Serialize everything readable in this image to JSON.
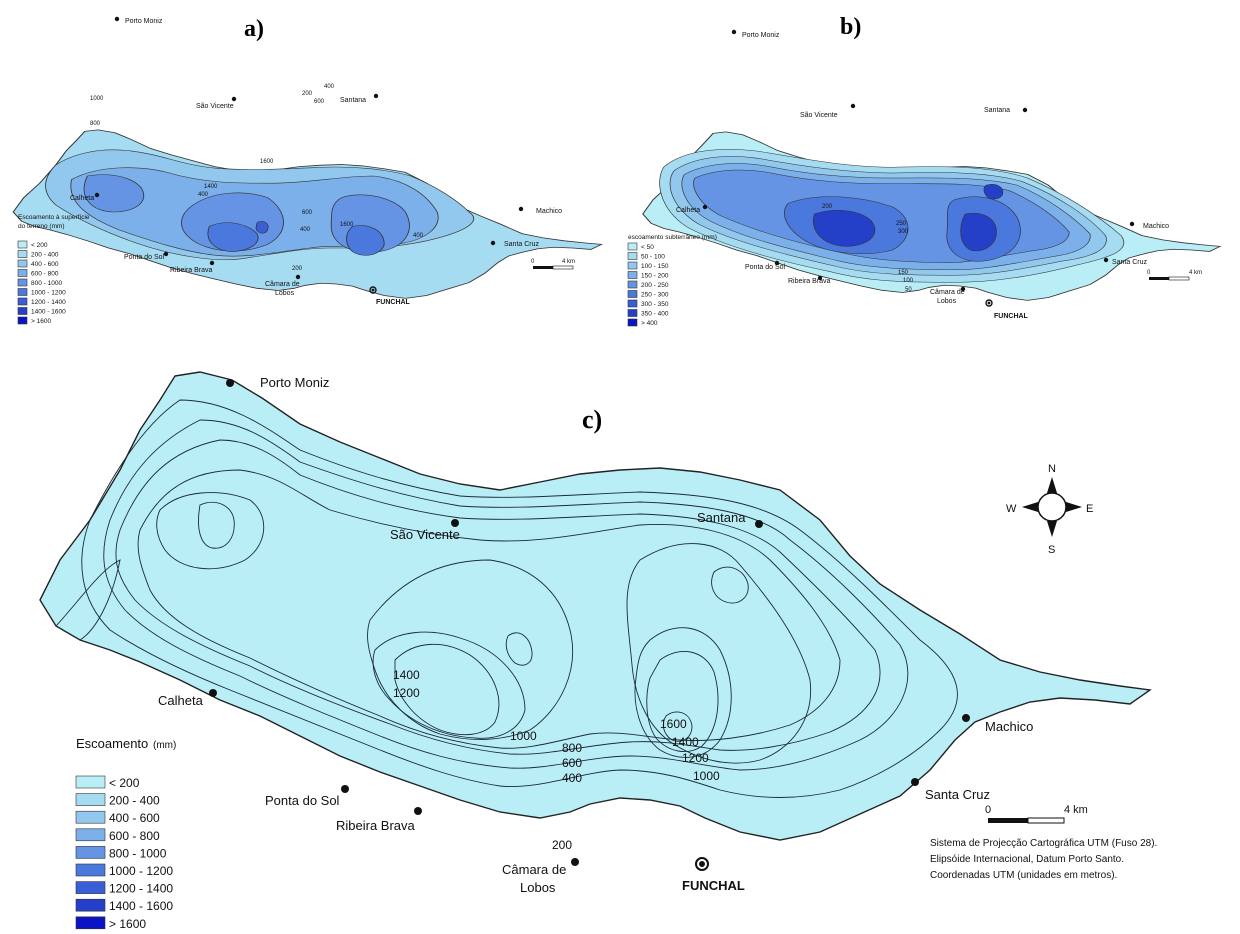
{
  "panels": {
    "a": {
      "label": "a)"
    },
    "b": {
      "label": "b)"
    },
    "c": {
      "label": "c)"
    }
  },
  "places": {
    "porto_moniz": "Porto Moniz",
    "sao_vicente": "São Vicente",
    "santana": "Santana",
    "calheta": "Calheta",
    "machico": "Machico",
    "santa_cruz": "Santa Cruz",
    "ponta_do_sol": "Ponta do Sol",
    "ribeira_brava": "Ribeira Brava",
    "camara_de_lobos_1": "Câmara de",
    "camara_de_lobos_2": "Lobos",
    "funchal": "FUNCHAL"
  },
  "legend_a": {
    "title_1": "Escoamento à superfície",
    "title_2": "do terreno (mm)",
    "classes": [
      "< 200",
      "200 - 400",
      "400 - 600",
      "600 - 800",
      "800 - 1000",
      "1000 - 1200",
      "1200 - 1400",
      "1400 - 1600",
      "> 1600"
    ]
  },
  "legend_b": {
    "title": "escoamento subterrâneo (mm)",
    "classes": [
      "< 50",
      "50 - 100",
      "100 - 150",
      "150 - 200",
      "200 - 250",
      "250 - 300",
      "300 - 350",
      "350 - 400",
      "> 400"
    ]
  },
  "legend_c": {
    "title": "Escoamento",
    "unit": "(mm)",
    "classes": [
      "< 200",
      "200 - 400",
      "400 - 600",
      "600 - 800",
      "800 - 1000",
      "1000 - 1200",
      "1200 - 1400",
      "1400 - 1600",
      "> 1600"
    ]
  },
  "class_colors": [
    "#b9eef7",
    "#a6dcf2",
    "#93c8ee",
    "#7cb0ea",
    "#6594e4",
    "#4a78dc",
    "#3a5ed5",
    "#2440c9",
    "#0b14c4"
  ],
  "scale": {
    "zero": "0",
    "distance": "4 km"
  },
  "compass": {
    "n": "N",
    "s": "S",
    "e": "E",
    "w": "W"
  },
  "projection_note": [
    "Sistema de Projecção Cartográfica UTM  (Fuso 28).",
    "Elipsóide Internacional, Datum Porto Santo.",
    "Coordenadas UTM (unidades em metros)."
  ],
  "isolines_c": {
    "l1400": "1400",
    "l1200": "1200",
    "l1000a": "1000",
    "l800": "800",
    "l600": "600",
    "l400": "400",
    "l1600": "1600",
    "l1400b": "1400",
    "l1200b": "1200",
    "l1000b": "1000",
    "l200": "200"
  },
  "isolines_a": {
    "l200": "200",
    "l400": "400",
    "l600": "600",
    "l1000a": "1000",
    "l1600a": "1600",
    "l600b": "600",
    "l400b": "400",
    "l1600b": "1600",
    "l400c": "400",
    "l200b": "200",
    "l800": "800",
    "l400d": "400",
    "l1400": "1400"
  },
  "isolines_b": {
    "l250": "250",
    "l300": "300",
    "l150": "150",
    "l100": "100",
    "l50": "50",
    "l200": "200"
  }
}
